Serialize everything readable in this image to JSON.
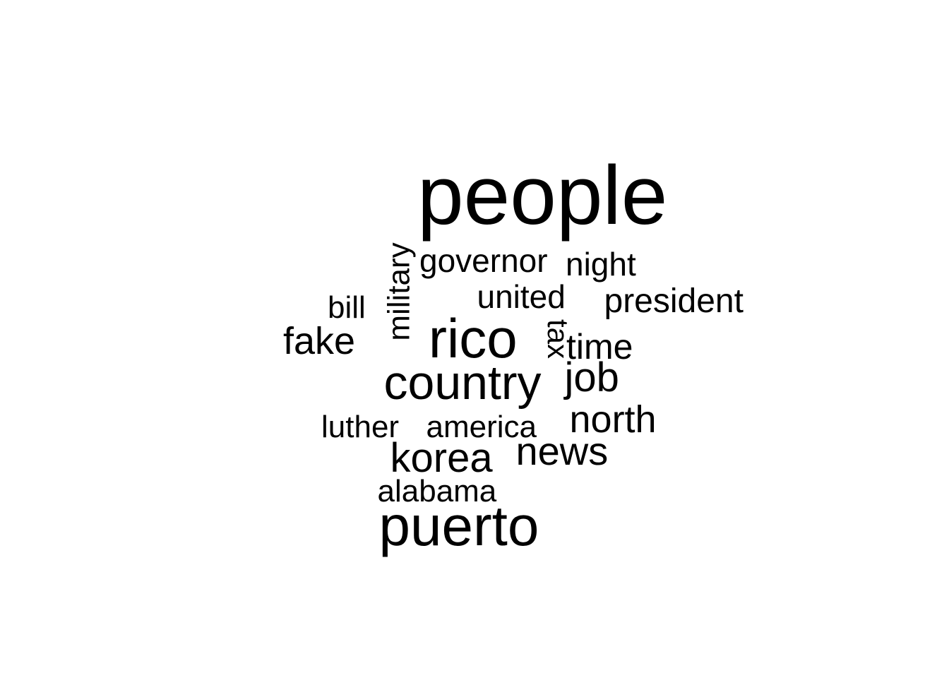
{
  "words": [
    {
      "id": "people",
      "text": "people"
    },
    {
      "id": "governor",
      "text": "governor"
    },
    {
      "id": "night",
      "text": "night"
    },
    {
      "id": "military",
      "text": "military"
    },
    {
      "id": "united",
      "text": "united"
    },
    {
      "id": "president",
      "text": "president"
    },
    {
      "id": "bill",
      "text": "bill"
    },
    {
      "id": "fake",
      "text": "fake"
    },
    {
      "id": "rico",
      "text": "rico"
    },
    {
      "id": "tax",
      "text": "tax"
    },
    {
      "id": "time",
      "text": "time"
    },
    {
      "id": "country",
      "text": "country"
    },
    {
      "id": "job",
      "text": "job"
    },
    {
      "id": "luther",
      "text": "luther"
    },
    {
      "id": "america",
      "text": "america"
    },
    {
      "id": "north",
      "text": "north"
    },
    {
      "id": "korea",
      "text": "korea"
    },
    {
      "id": "news",
      "text": "news"
    },
    {
      "id": "alabama",
      "text": "alabama"
    },
    {
      "id": "puerto",
      "text": "puerto"
    }
  ],
  "text_color": "#000000",
  "background_color": "#ffffff"
}
